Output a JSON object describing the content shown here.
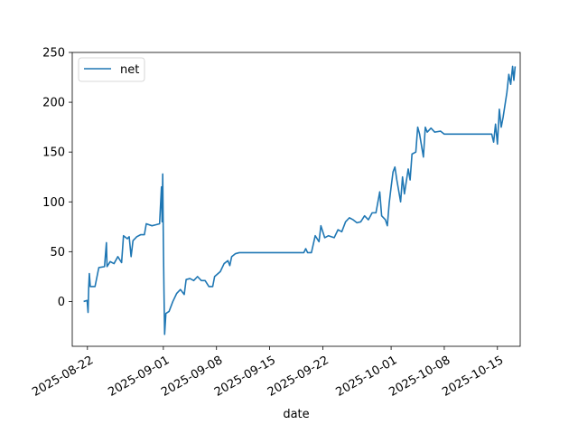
{
  "chart_data": {
    "type": "line",
    "xlabel": "date",
    "ylabel": "",
    "ylim": [
      -45,
      250
    ],
    "xlim": [
      "2025-08-20",
      "2025-10-18"
    ],
    "grid": false,
    "legend": {
      "placement": "top-left",
      "entries": [
        "net"
      ]
    },
    "y_ticks": [
      0,
      50,
      100,
      150,
      200,
      250
    ],
    "x_ticks": [
      "2025-08-22",
      "2025-09-01",
      "2025-09-08",
      "2025-09-15",
      "2025-09-22",
      "2025-10-01",
      "2025-10-08",
      "2025-10-15"
    ],
    "series": [
      {
        "name": "net",
        "color": "#1f77b4",
        "points": [
          [
            "2025-08-21 12:00",
            0
          ],
          [
            "2025-08-21 23:00",
            1
          ],
          [
            "2025-08-22 02:00",
            -11
          ],
          [
            "2025-08-22 04:00",
            14
          ],
          [
            "2025-08-22 06:00",
            28
          ],
          [
            "2025-08-22 09:00",
            15
          ],
          [
            "2025-08-23 00:00",
            15
          ],
          [
            "2025-08-23 12:00",
            34
          ],
          [
            "2025-08-24 06:00",
            35
          ],
          [
            "2025-08-24 12:00",
            59
          ],
          [
            "2025-08-24 14:00",
            35
          ],
          [
            "2025-08-25 00:00",
            40
          ],
          [
            "2025-08-25 12:00",
            38
          ],
          [
            "2025-08-26 00:00",
            45
          ],
          [
            "2025-08-26 12:00",
            39
          ],
          [
            "2025-08-26 18:00",
            66
          ],
          [
            "2025-08-27 06:00",
            63
          ],
          [
            "2025-08-27 12:00",
            65
          ],
          [
            "2025-08-27 18:00",
            45
          ],
          [
            "2025-08-28 00:00",
            61
          ],
          [
            "2025-08-28 12:00",
            65
          ],
          [
            "2025-08-29 00:00",
            67
          ],
          [
            "2025-08-29 12:00",
            67
          ],
          [
            "2025-08-29 18:00",
            78
          ],
          [
            "2025-08-30 12:00",
            76
          ],
          [
            "2025-08-31 00:00",
            77
          ],
          [
            "2025-08-31 12:00",
            78
          ],
          [
            "2025-08-31 18:00",
            115
          ],
          [
            "2025-08-31 20:00",
            80
          ],
          [
            "2025-08-31 22:00",
            128
          ],
          [
            "2025-09-01 00:00",
            60
          ],
          [
            "2025-09-01 02:00",
            10
          ],
          [
            "2025-09-01 04:00",
            -33
          ],
          [
            "2025-09-01 08:00",
            -12
          ],
          [
            "2025-09-01 18:00",
            -10
          ],
          [
            "2025-09-02 06:00",
            0
          ],
          [
            "2025-09-02 18:00",
            8
          ],
          [
            "2025-09-03 06:00",
            12
          ],
          [
            "2025-09-03 18:00",
            7
          ],
          [
            "2025-09-04 00:00",
            22
          ],
          [
            "2025-09-04 12:00",
            23
          ],
          [
            "2025-09-05 00:00",
            21
          ],
          [
            "2025-09-05 12:00",
            25
          ],
          [
            "2025-09-06 00:00",
            21
          ],
          [
            "2025-09-06 12:00",
            21
          ],
          [
            "2025-09-07 00:00",
            15
          ],
          [
            "2025-09-07 12:00",
            15
          ],
          [
            "2025-09-07 18:00",
            25
          ],
          [
            "2025-09-08 12:00",
            30
          ],
          [
            "2025-09-09 00:00",
            38
          ],
          [
            "2025-09-09 12:00",
            41
          ],
          [
            "2025-09-09 18:00",
            36
          ],
          [
            "2025-09-10 00:00",
            45
          ],
          [
            "2025-09-10 12:00",
            48
          ],
          [
            "2025-09-11 00:00",
            49
          ],
          [
            "2025-09-14 00:00",
            49
          ],
          [
            "2025-09-18 00:00",
            49
          ],
          [
            "2025-09-19 12:00",
            49
          ],
          [
            "2025-09-19 18:00",
            53
          ],
          [
            "2025-09-20 00:00",
            49
          ],
          [
            "2025-09-20 12:00",
            49
          ],
          [
            "2025-09-21 00:00",
            66
          ],
          [
            "2025-09-21 12:00",
            60
          ],
          [
            "2025-09-21 18:00",
            76
          ],
          [
            "2025-09-22 06:00",
            64
          ],
          [
            "2025-09-22 18:00",
            66
          ],
          [
            "2025-09-23 12:00",
            64
          ],
          [
            "2025-09-24 00:00",
            72
          ],
          [
            "2025-09-24 12:00",
            70
          ],
          [
            "2025-09-25 00:00",
            80
          ],
          [
            "2025-09-25 12:00",
            84
          ],
          [
            "2025-09-26 00:00",
            82
          ],
          [
            "2025-09-26 12:00",
            79
          ],
          [
            "2025-09-27 00:00",
            80
          ],
          [
            "2025-09-27 12:00",
            86
          ],
          [
            "2025-09-28 00:00",
            82
          ],
          [
            "2025-09-28 12:00",
            89
          ],
          [
            "2025-09-29 00:00",
            89
          ],
          [
            "2025-09-29 12:00",
            110
          ],
          [
            "2025-09-29 18:00",
            86
          ],
          [
            "2025-09-30 06:00",
            82
          ],
          [
            "2025-09-30 12:00",
            76
          ],
          [
            "2025-09-30 18:00",
            99
          ],
          [
            "2025-10-01 00:00",
            115
          ],
          [
            "2025-10-01 06:00",
            130
          ],
          [
            "2025-10-01 12:00",
            135
          ],
          [
            "2025-10-01 18:00",
            122
          ],
          [
            "2025-10-02 06:00",
            100
          ],
          [
            "2025-10-02 12:00",
            125
          ],
          [
            "2025-10-02 18:00",
            108
          ],
          [
            "2025-10-03 06:00",
            133
          ],
          [
            "2025-10-03 12:00",
            122
          ],
          [
            "2025-10-03 18:00",
            148
          ],
          [
            "2025-10-04 06:00",
            150
          ],
          [
            "2025-10-04 12:00",
            175
          ],
          [
            "2025-10-04 18:00",
            168
          ],
          [
            "2025-10-05 06:00",
            145
          ],
          [
            "2025-10-05 12:00",
            175
          ],
          [
            "2025-10-05 18:00",
            170
          ],
          [
            "2025-10-06 06:00",
            174
          ],
          [
            "2025-10-06 18:00",
            170
          ],
          [
            "2025-10-07 12:00",
            171
          ],
          [
            "2025-10-08 00:00",
            168
          ],
          [
            "2025-10-09 00:00",
            168
          ],
          [
            "2025-10-11 00:00",
            168
          ],
          [
            "2025-10-13 00:00",
            168
          ],
          [
            "2025-10-14 06:00",
            168
          ],
          [
            "2025-10-14 12:00",
            160
          ],
          [
            "2025-10-14 18:00",
            178
          ],
          [
            "2025-10-15 00:00",
            158
          ],
          [
            "2025-10-15 06:00",
            193
          ],
          [
            "2025-10-15 12:00",
            175
          ],
          [
            "2025-10-15 18:00",
            185
          ],
          [
            "2025-10-16 06:00",
            210
          ],
          [
            "2025-10-16 12:00",
            228
          ],
          [
            "2025-10-16 18:00",
            218
          ],
          [
            "2025-10-17 00:00",
            236
          ],
          [
            "2025-10-17 04:00",
            222
          ],
          [
            "2025-10-17 08:00",
            236
          ]
        ]
      }
    ]
  }
}
